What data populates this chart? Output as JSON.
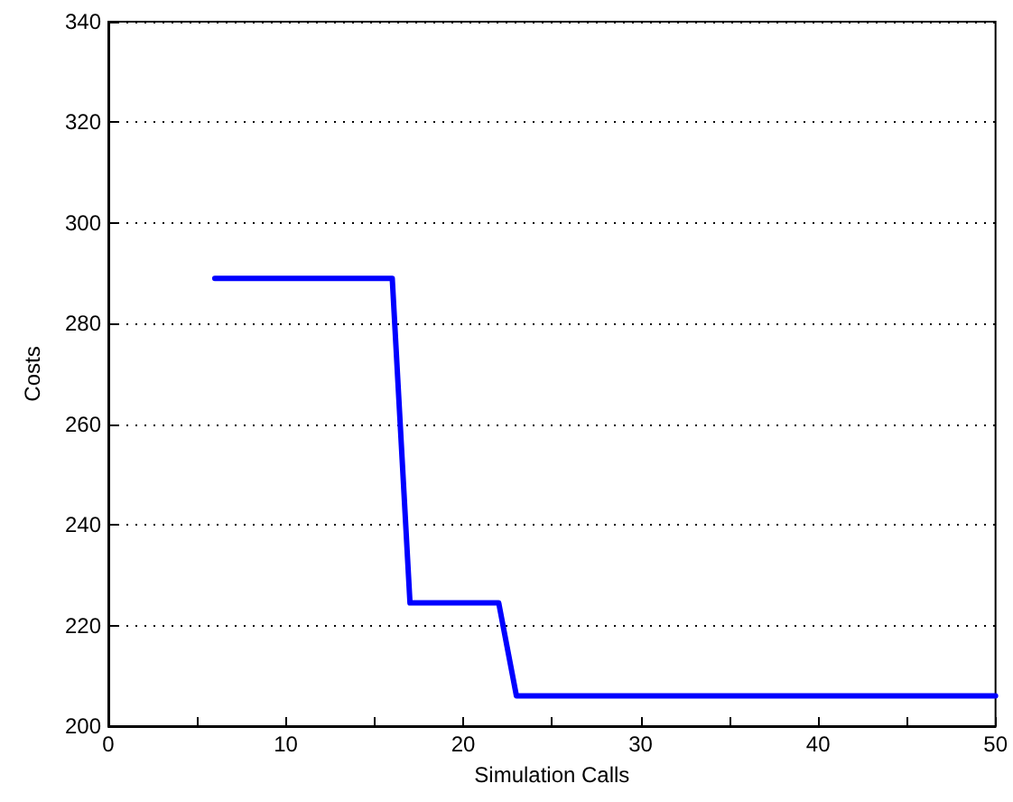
{
  "chart_data": {
    "type": "line",
    "xlabel": "Simulation Calls",
    "ylabel": "Costs",
    "xlim": [
      0,
      50
    ],
    "ylim": [
      200,
      340
    ],
    "xticks": [
      0,
      {
        "value": 5,
        "label": null
      },
      10,
      {
        "value": 15,
        "label": null
      },
      20,
      {
        "value": 25,
        "label": null
      },
      30,
      {
        "value": 35,
        "label": null
      },
      40,
      {
        "value": 45,
        "label": null
      },
      50
    ],
    "yticks": [
      200,
      220,
      240,
      260,
      280,
      300,
      320,
      340
    ],
    "grid": "y",
    "line_style": "solid",
    "marker": "none",
    "series": [
      {
        "color": "#0000ff",
        "x": [
          6,
          16,
          17,
          22,
          23,
          50
        ],
        "values": [
          289,
          289,
          224.5,
          224.5,
          206,
          206
        ]
      }
    ]
  }
}
